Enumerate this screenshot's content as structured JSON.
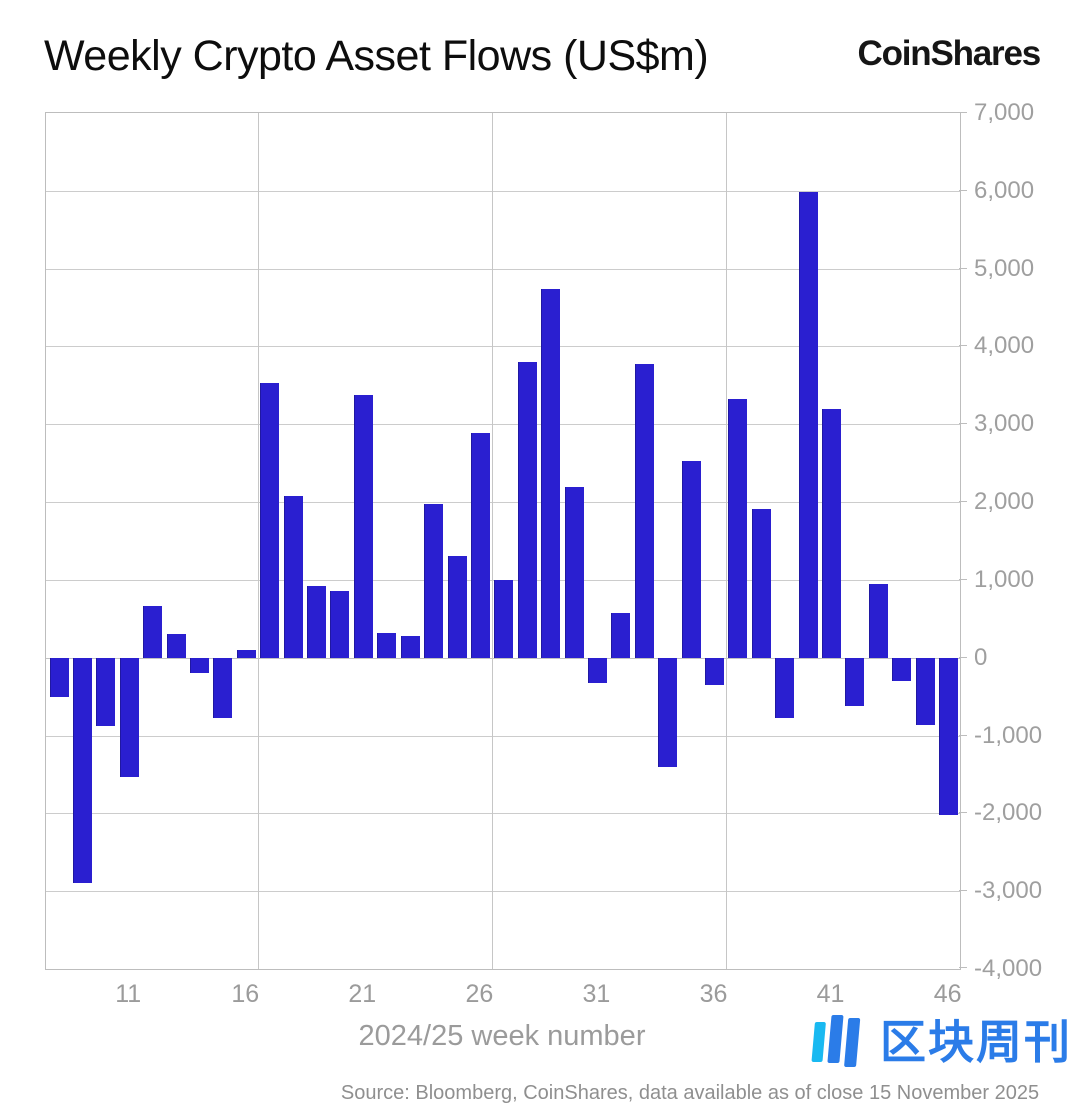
{
  "header": {
    "title": "Weekly Crypto Asset Flows (US$m)",
    "brand": "CoinShares"
  },
  "chart_data": {
    "type": "bar",
    "title": "Weekly Crypto Asset Flows (US$m)",
    "xlabel": "2024/25 week number",
    "ylabel": "",
    "ylim": [
      -4000,
      7000
    ],
    "grid": true,
    "bar_color": "#2a1fd0",
    "bars": [
      {
        "week": 8,
        "value": -500
      },
      {
        "week": 9,
        "value": -2900
      },
      {
        "week": 10,
        "value": -880
      },
      {
        "week": 11,
        "value": -1530
      },
      {
        "week": 12,
        "value": 660
      },
      {
        "week": 13,
        "value": 300
      },
      {
        "week": 14,
        "value": -200
      },
      {
        "week": 15,
        "value": -780
      },
      {
        "week": 16,
        "value": 100
      },
      {
        "week": 17,
        "value": 3530
      },
      {
        "week": 18,
        "value": 2080
      },
      {
        "week": 19,
        "value": 920
      },
      {
        "week": 20,
        "value": 860
      },
      {
        "week": 21,
        "value": 3380
      },
      {
        "week": 22,
        "value": 320
      },
      {
        "week": 23,
        "value": 280
      },
      {
        "week": 24,
        "value": 1980
      },
      {
        "week": 25,
        "value": 1310
      },
      {
        "week": 26,
        "value": 2890
      },
      {
        "week": 27,
        "value": 1000
      },
      {
        "week": 28,
        "value": 3800
      },
      {
        "week": 29,
        "value": 4740
      },
      {
        "week": 30,
        "value": 2200
      },
      {
        "week": 31,
        "value": -320
      },
      {
        "week": 32,
        "value": 580
      },
      {
        "week": 33,
        "value": 3770
      },
      {
        "week": 34,
        "value": -1400
      },
      {
        "week": 35,
        "value": 2530
      },
      {
        "week": 36,
        "value": -350
      },
      {
        "week": 37,
        "value": 3330
      },
      {
        "week": 38,
        "value": 1910
      },
      {
        "week": 39,
        "value": -770
      },
      {
        "week": 40,
        "value": 5990
      },
      {
        "week": 41,
        "value": 3200
      },
      {
        "week": 42,
        "value": -620
      },
      {
        "week": 43,
        "value": 950
      },
      {
        "week": 44,
        "value": -300
      },
      {
        "week": 45,
        "value": -860
      },
      {
        "week": 46,
        "value": -2020
      }
    ],
    "x_ticks": [
      {
        "value": 11,
        "label": "11"
      },
      {
        "value": 16,
        "label": "16"
      },
      {
        "value": 21,
        "label": "21"
      },
      {
        "value": 26,
        "label": "26"
      },
      {
        "value": 31,
        "label": "31"
      },
      {
        "value": 36,
        "label": "36"
      },
      {
        "value": 41,
        "label": "41"
      },
      {
        "value": 46,
        "label": "46"
      }
    ],
    "y_ticks": [
      {
        "value": 7000,
        "label": "7,000"
      },
      {
        "value": 6000,
        "label": "6,000"
      },
      {
        "value": 5000,
        "label": "5,000"
      },
      {
        "value": 4000,
        "label": "4,000"
      },
      {
        "value": 3000,
        "label": "3,000"
      },
      {
        "value": 2000,
        "label": "2,000"
      },
      {
        "value": 1000,
        "label": "1,000"
      },
      {
        "value": 0,
        "label": "0"
      },
      {
        "value": -1000,
        "label": "-1,000"
      },
      {
        "value": -2000,
        "label": "-2,000"
      },
      {
        "value": -3000,
        "label": "-3,000"
      },
      {
        "value": -4000,
        "label": "-4,000"
      }
    ],
    "v_gridline_weeks": [
      16.5,
      26.5,
      36.5
    ],
    "legend_position": "none"
  },
  "footer": {
    "source": "Source: Bloomberg, CoinShares, data available as of close 15 November 2025"
  },
  "watermark": {
    "text": "区块周刊",
    "color": "#2b7ce8",
    "accent": "#19b9f1"
  }
}
